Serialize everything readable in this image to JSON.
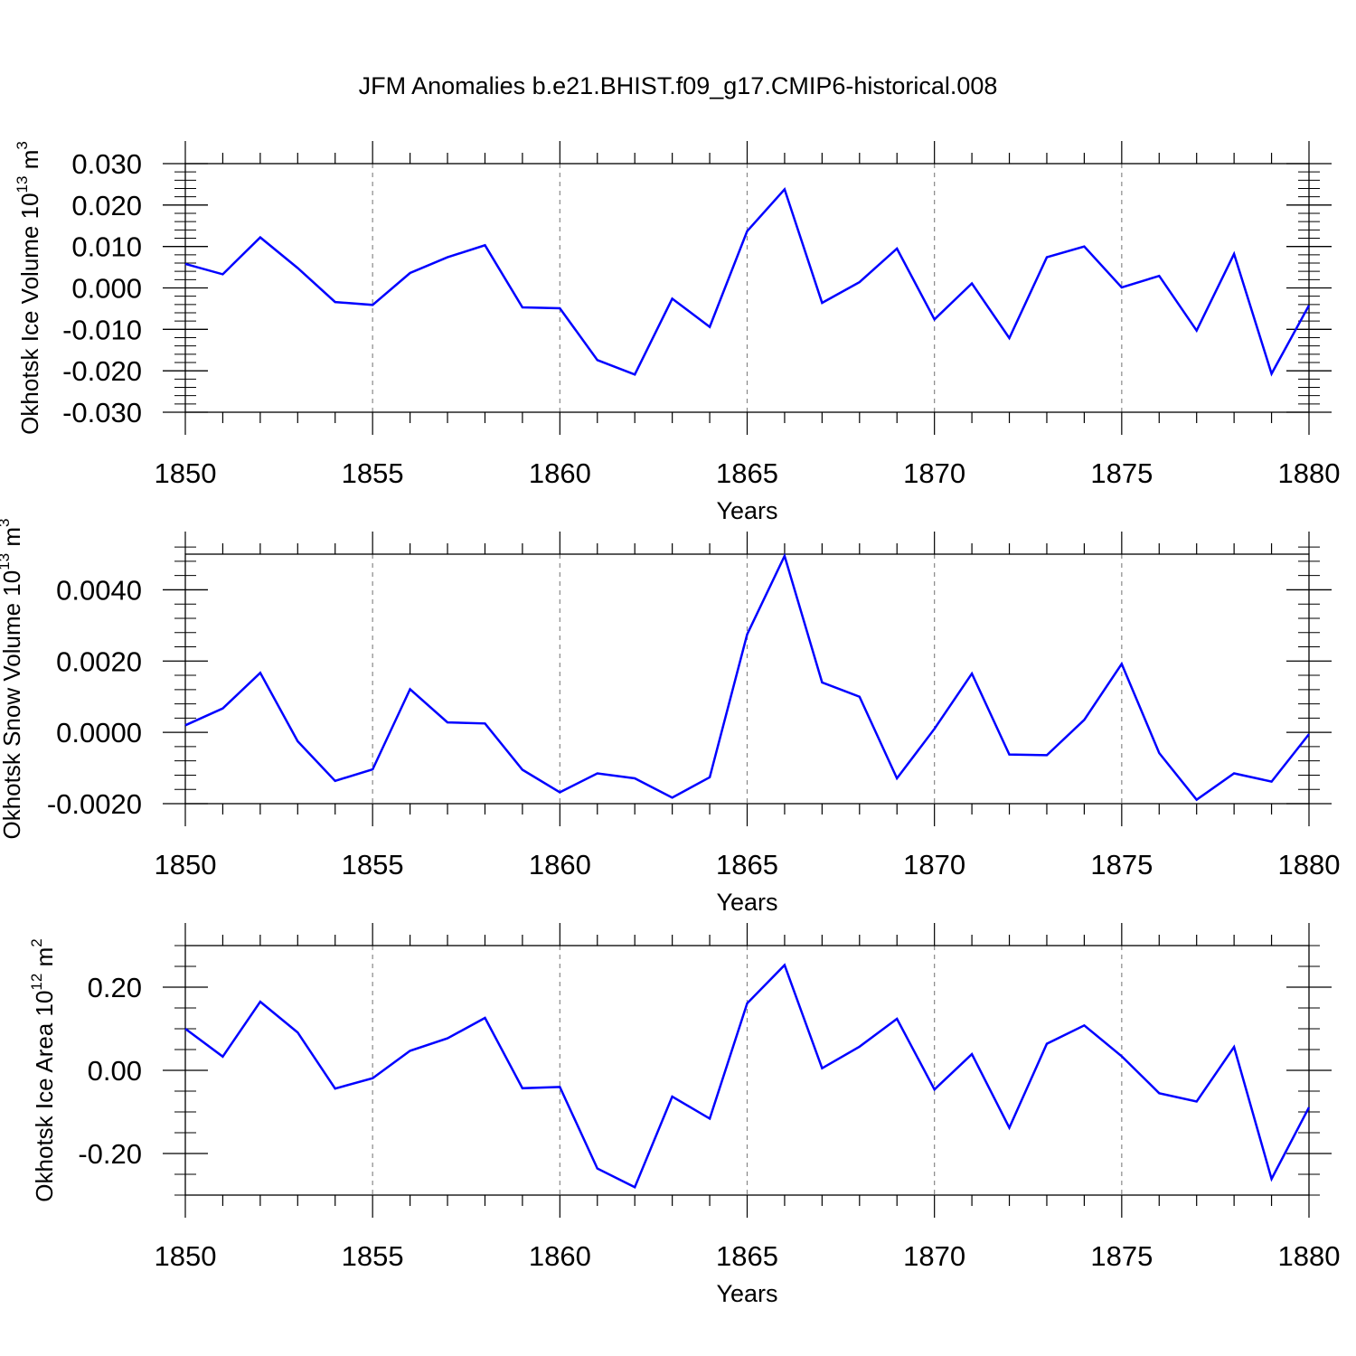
{
  "title": "JFM Anomalies b.e21.BHIST.f09_g17.CMIP6-historical.008",
  "colors": {
    "series": "#0000ff",
    "axis": "#000000",
    "grid": "#888888"
  },
  "chart_data": [
    {
      "type": "line",
      "ylabel_main": "Okhotsk Ice Volume 10",
      "ylabel_exp": "13",
      "ylabel_unit": " m",
      "ylabel_unit_exp": "3",
      "xlabel": "Years",
      "xlim": [
        1850,
        1880
      ],
      "ylim": [
        -0.03,
        0.03
      ],
      "yticks": [
        -0.03,
        -0.02,
        -0.01,
        0.0,
        0.01,
        0.02,
        0.03
      ],
      "ytick_labels": [
        "-0.030",
        "-0.020",
        "-0.010",
        "0.000",
        "0.010",
        "0.020",
        "0.030"
      ],
      "yminor": 0.002,
      "xticks": [
        1850,
        1855,
        1860,
        1865,
        1870,
        1875,
        1880
      ],
      "xtick_labels": [
        "1850",
        "1855",
        "1860",
        "1865",
        "1870",
        "1875",
        "1880"
      ],
      "x": [
        1850,
        1851,
        1852,
        1853,
        1854,
        1855,
        1856,
        1857,
        1858,
        1859,
        1860,
        1861,
        1862,
        1863,
        1864,
        1865,
        1866,
        1867,
        1868,
        1869,
        1870,
        1871,
        1872,
        1873,
        1874,
        1875,
        1876,
        1877,
        1878,
        1879,
        1880
      ],
      "series": [
        {
          "values": [
            0.0058,
            0.0033,
            0.0122,
            0.0048,
            -0.0034,
            -0.0041,
            0.0036,
            0.0074,
            0.0103,
            -0.0047,
            -0.0049,
            -0.0174,
            -0.0209,
            -0.0026,
            -0.0094,
            0.0137,
            0.0238,
            -0.0036,
            0.0014,
            0.0095,
            -0.0076,
            0.0011,
            -0.0121,
            0.0074,
            0.01,
            0.0001,
            0.0029,
            -0.0103,
            0.0082,
            -0.0207,
            -0.0042
          ]
        }
      ]
    },
    {
      "type": "line",
      "ylabel_main": "Okhotsk Snow Volume 10",
      "ylabel_exp": "13",
      "ylabel_unit": " m",
      "ylabel_unit_exp": "3",
      "xlabel": "Years",
      "xlim": [
        1850,
        1880
      ],
      "ylim": [
        -0.002,
        0.005
      ],
      "yticks": [
        -0.002,
        0.0,
        0.002,
        0.004
      ],
      "ytick_labels": [
        "-0.0020",
        "0.0000",
        "0.0020",
        "0.0040"
      ],
      "yminor": 0.0004,
      "xticks": [
        1850,
        1855,
        1860,
        1865,
        1870,
        1875,
        1880
      ],
      "xtick_labels": [
        "1850",
        "1855",
        "1860",
        "1865",
        "1870",
        "1875",
        "1880"
      ],
      "x": [
        1850,
        1851,
        1852,
        1853,
        1854,
        1855,
        1856,
        1857,
        1858,
        1859,
        1860,
        1861,
        1862,
        1863,
        1864,
        1865,
        1866,
        1867,
        1868,
        1869,
        1870,
        1871,
        1872,
        1873,
        1874,
        1875,
        1876,
        1877,
        1878,
        1879,
        1880
      ],
      "series": [
        {
          "values": [
            0.0002,
            0.00067,
            0.00167,
            -0.00025,
            -0.00136,
            -0.00104,
            0.00121,
            0.00028,
            0.00025,
            -0.00105,
            -0.00168,
            -0.00115,
            -0.00129,
            -0.00183,
            -0.00126,
            0.00275,
            0.00495,
            0.0014,
            0.001,
            -0.00129,
            0.0001,
            0.00165,
            -0.00062,
            -0.00064,
            0.00035,
            0.00192,
            -0.00058,
            -0.00189,
            -0.00115,
            -0.00138,
            -5e-05
          ]
        }
      ]
    },
    {
      "type": "line",
      "ylabel_main": "Okhotsk Ice Area 10",
      "ylabel_exp": "12",
      "ylabel_unit": " m",
      "ylabel_unit_exp": "2",
      "xlabel": "Years",
      "xlim": [
        1850,
        1880
      ],
      "ylim": [
        -0.3,
        0.3
      ],
      "yticks": [
        -0.2,
        0.0,
        0.2
      ],
      "ytick_labels": [
        "-0.20",
        "0.00",
        "0.20"
      ],
      "yminor": 0.05,
      "xticks": [
        1850,
        1855,
        1860,
        1865,
        1870,
        1875,
        1880
      ],
      "xtick_labels": [
        "1850",
        "1855",
        "1860",
        "1865",
        "1870",
        "1875",
        "1880"
      ],
      "x": [
        1850,
        1851,
        1852,
        1853,
        1854,
        1855,
        1856,
        1857,
        1858,
        1859,
        1860,
        1861,
        1862,
        1863,
        1864,
        1865,
        1866,
        1867,
        1868,
        1869,
        1870,
        1871,
        1872,
        1873,
        1874,
        1875,
        1876,
        1877,
        1878,
        1879,
        1880
      ],
      "series": [
        {
          "values": [
            0.1,
            0.033,
            0.165,
            0.091,
            -0.044,
            -0.019,
            0.047,
            0.077,
            0.126,
            -0.043,
            -0.04,
            -0.236,
            -0.281,
            -0.063,
            -0.116,
            0.161,
            0.253,
            0.005,
            0.057,
            0.124,
            -0.046,
            0.039,
            -0.138,
            0.064,
            0.108,
            0.034,
            -0.055,
            -0.075,
            0.056,
            -0.261,
            -0.089
          ]
        }
      ]
    }
  ]
}
